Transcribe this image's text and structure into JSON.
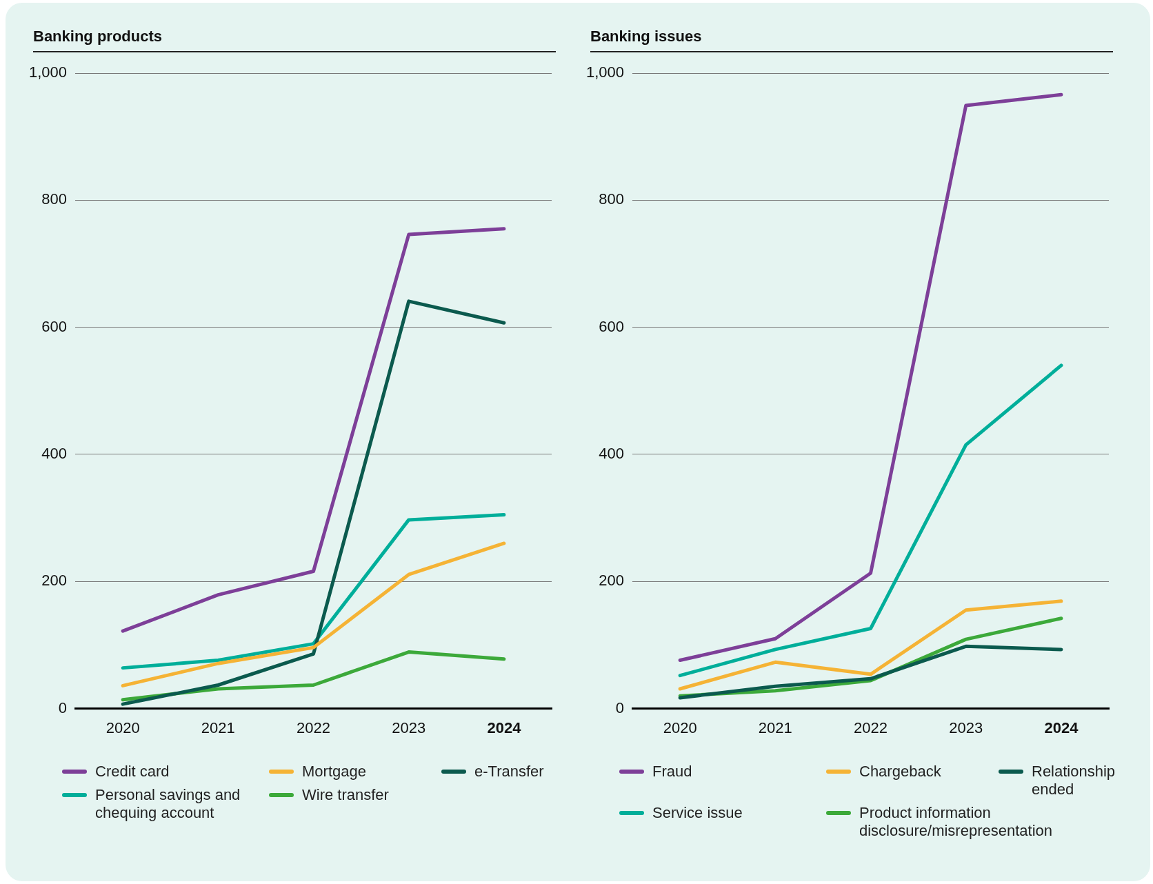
{
  "chart_data": [
    {
      "type": "line",
      "title": "Banking products",
      "categories": [
        "2020",
        "2021",
        "2022",
        "2023",
        "2024"
      ],
      "ylim": [
        0,
        1000
      ],
      "yticks": [
        0,
        200,
        400,
        600,
        800,
        {
          "value": 1000,
          "label": "1,000"
        }
      ],
      "grid": "y",
      "legend": "bottom",
      "marker": "none",
      "line_style": "solid",
      "series": [
        {
          "name": "Credit card",
          "color": "#7d3f98",
          "values": [
            122,
            179,
            216,
            746,
            755
          ]
        },
        {
          "name": "Mortgage",
          "color": "#f5b335",
          "values": [
            36,
            71,
            96,
            211,
            260
          ]
        },
        {
          "name": "e-Transfer",
          "color": "#0b5a4e",
          "values": [
            7,
            37,
            86,
            641,
            607
          ]
        },
        {
          "name": "Personal savings and chequing account",
          "color": "#00ae9a",
          "values": [
            64,
            76,
            102,
            297,
            305
          ]
        },
        {
          "name": "Wire transfer",
          "color": "#3ca93a",
          "values": [
            14,
            31,
            37,
            89,
            78
          ]
        }
      ]
    },
    {
      "type": "line",
      "title": "Banking issues",
      "categories": [
        "2020",
        "2021",
        "2022",
        "2023",
        "2024"
      ],
      "ylim": [
        0,
        1000
      ],
      "yticks": [
        0,
        200,
        400,
        600,
        800,
        {
          "value": 1000,
          "label": "1,000"
        }
      ],
      "grid": "y",
      "legend": "bottom",
      "marker": "none",
      "line_style": "solid",
      "series": [
        {
          "name": "Fraud",
          "color": "#7d3f98",
          "values": [
            76,
            110,
            213,
            949,
            966
          ]
        },
        {
          "name": "Chargeback",
          "color": "#f5b335",
          "values": [
            31,
            73,
            54,
            155,
            169
          ]
        },
        {
          "name": "Relationship ended",
          "color": "#0b5a4e",
          "values": [
            17,
            35,
            47,
            98,
            93
          ]
        },
        {
          "name": "Service issue",
          "color": "#00ae9a",
          "values": [
            52,
            93,
            126,
            415,
            540
          ]
        },
        {
          "name": "Product information disclosure/misrepresentation",
          "color": "#3ca93a",
          "values": [
            20,
            28,
            44,
            109,
            142
          ]
        }
      ]
    }
  ]
}
